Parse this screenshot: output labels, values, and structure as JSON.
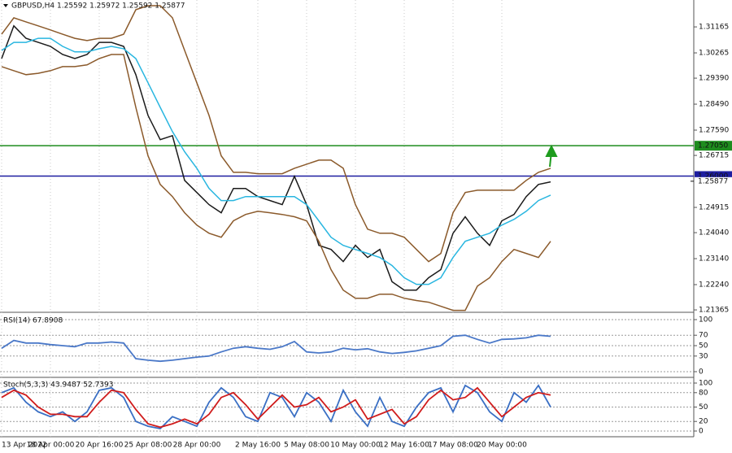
{
  "chart_data": [
    {
      "type": "line",
      "title": "GBPUSD,H4 1.25592 1.25972 1.25592 1.25877",
      "categories": [
        "13 Apr 2022",
        null,
        null,
        null,
        "18 Apr 00:00",
        null,
        null,
        null,
        "20 Apr 16:00",
        null,
        null,
        null,
        "25 Apr 08:00",
        null,
        null,
        null,
        "28 Apr 00:00",
        null,
        null,
        null,
        null,
        "2 May 16:00",
        null,
        null,
        null,
        "5 May 08:00",
        null,
        null,
        null,
        "10 May 00:00",
        null,
        null,
        null,
        "12 May 16:00",
        null,
        null,
        null,
        "17 May 08:00",
        null,
        null,
        null,
        "20 May 00:00",
        null,
        null,
        null,
        null
      ],
      "series": [
        {
          "color": "#1b1b1b",
          "values": [
            1.3007,
            1.312,
            1.3077,
            1.3063,
            1.3049,
            1.3021,
            1.3007,
            1.3021,
            1.3063,
            1.3063,
            1.3049,
            1.2951,
            1.281,
            1.2726,
            1.274,
            1.2585,
            1.2543,
            1.2501,
            1.2473,
            1.2557,
            1.2557,
            1.2529,
            1.2515,
            1.2501,
            1.2599,
            1.2501,
            1.236,
            1.2346,
            1.2304,
            1.236,
            1.2318,
            1.2346,
            1.2234,
            1.2205,
            1.2205,
            1.2248,
            1.2276,
            1.2402,
            1.2459,
            1.2402,
            1.236,
            1.2445,
            1.2467,
            1.2529,
            1.2571,
            1.258
          ]
        },
        {
          "color": "#29b6e0",
          "values": [
            1.3035,
            1.3063,
            1.3063,
            1.3077,
            1.3077,
            1.3049,
            1.303,
            1.303,
            1.3041,
            1.3049,
            1.3041,
            1.3007,
            1.2923,
            1.2838,
            1.2754,
            1.2684,
            1.2627,
            1.2557,
            1.2515,
            1.2515,
            1.2529,
            1.2529,
            1.2529,
            1.2529,
            1.2529,
            1.2501,
            1.2445,
            1.2388,
            1.236,
            1.2346,
            1.2332,
            1.2318,
            1.229,
            1.2248,
            1.2225,
            1.2225,
            1.2248,
            1.2318,
            1.2374,
            1.2388,
            1.2402,
            1.243,
            1.245,
            1.2478,
            1.2515,
            1.2534
          ]
        },
        {
          "color": "#8b5a2b",
          "values": [
            1.3091,
            1.3148,
            1.3134,
            1.312,
            1.3106,
            1.3091,
            1.3077,
            1.3069,
            1.3077,
            1.3077,
            1.3091,
            1.3176,
            1.319,
            1.319,
            1.3148,
            1.3035,
            1.2923,
            1.281,
            1.267,
            1.2613,
            1.2613,
            1.2608,
            1.2608,
            1.2608,
            1.2627,
            1.2641,
            1.2655,
            1.2655,
            1.2627,
            1.2501,
            1.2416,
            1.2402,
            1.2402,
            1.2388,
            1.2346,
            1.2304,
            1.2332,
            1.2473,
            1.2543,
            1.2551,
            1.2551,
            1.2551,
            1.2551,
            1.2585,
            1.2613,
            1.2627
          ]
        },
        {
          "color": "#8b5a2b",
          "values": [
            1.2979,
            1.2965,
            1.2951,
            1.2956,
            1.2965,
            1.2979,
            1.2979,
            1.2985,
            1.3007,
            1.3021,
            1.3021,
            1.2838,
            1.267,
            1.2571,
            1.2529,
            1.2473,
            1.243,
            1.2402,
            1.2388,
            1.2445,
            1.2467,
            1.2478,
            1.2473,
            1.2467,
            1.2459,
            1.2445,
            1.2374,
            1.2276,
            1.2205,
            1.2177,
            1.2177,
            1.2191,
            1.2191,
            1.2177,
            1.2169,
            1.2163,
            1.2149,
            1.2135,
            1.2135,
            1.2219,
            1.2248,
            1.2304,
            1.2346,
            1.2332,
            1.2318,
            1.2374
          ]
        }
      ],
      "ylim": [
        1.2131,
        1.3204
      ],
      "yticks": [
        1.31165,
        1.30265,
        {
          "value": 1.2939,
          "label": "1.29390"
        },
        {
          "value": 1.2849,
          "label": "1.28490"
        },
        {
          "value": 1.2759,
          "label": "1.27590"
        },
        1.26715,
        1.24915,
        {
          "value": 1.2404,
          "label": "1.24040"
        },
        {
          "value": 1.2314,
          "label": "1.23140"
        },
        {
          "value": 1.2224,
          "label": "1.22240"
        },
        1.21365
      ],
      "reference_lines": [
        {
          "value": 1.2705,
          "label": "1.27050",
          "color": "#1e8c1e"
        },
        {
          "value": 1.26,
          "label": "1.26000",
          "color": "#1e1ea0"
        }
      ],
      "last_price": 1.25877,
      "grid": true
    },
    {
      "type": "line",
      "title": "RSI(14) 67.8908",
      "series": [
        {
          "color": "#4a78c8",
          "values": [
            45,
            60,
            55,
            55,
            52,
            50,
            48,
            55,
            55,
            57,
            55,
            25,
            22,
            20,
            22,
            25,
            28,
            30,
            38,
            45,
            48,
            45,
            43,
            48,
            58,
            38,
            36,
            38,
            45,
            42,
            44,
            38,
            35,
            37,
            40,
            45,
            50,
            68,
            70,
            62,
            55,
            62,
            63,
            65,
            70,
            68
          ]
        }
      ],
      "ylim": [
        0,
        100
      ],
      "yticks": [
        100,
        70,
        50,
        30,
        0
      ],
      "grid": true
    },
    {
      "type": "line",
      "title": "Stoch(5,3,3) 43.9487 52.7393",
      "series": [
        {
          "color": "#3a6fc4",
          "values": [
            80,
            90,
            60,
            40,
            30,
            40,
            20,
            40,
            85,
            90,
            70,
            20,
            10,
            5,
            30,
            20,
            10,
            60,
            90,
            70,
            30,
            20,
            80,
            70,
            30,
            80,
            60,
            20,
            85,
            40,
            10,
            70,
            20,
            10,
            50,
            80,
            90,
            40,
            95,
            80,
            40,
            20,
            80,
            60,
            95,
            50
          ]
        },
        {
          "color": "#d01c1c",
          "values": [
            70,
            85,
            75,
            50,
            35,
            35,
            30,
            30,
            60,
            85,
            80,
            45,
            15,
            8,
            15,
            25,
            15,
            35,
            70,
            80,
            55,
            25,
            50,
            75,
            50,
            55,
            70,
            40,
            50,
            65,
            25,
            35,
            45,
            15,
            30,
            65,
            85,
            65,
            70,
            90,
            60,
            30,
            50,
            70,
            80,
            75
          ]
        }
      ],
      "ylim": [
        0,
        100
      ],
      "yticks": [
        100,
        80,
        50,
        20,
        0
      ],
      "grid": true
    }
  ]
}
